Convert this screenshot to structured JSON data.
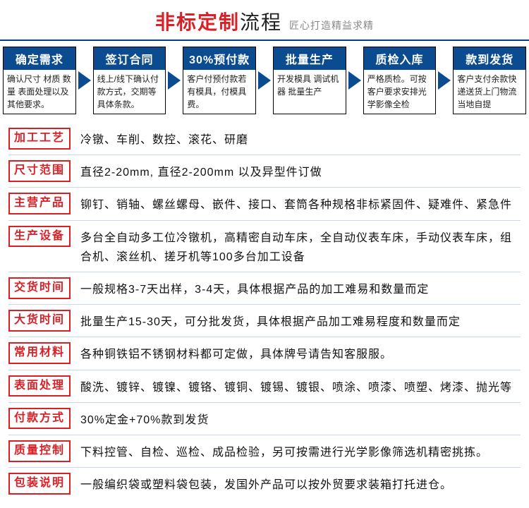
{
  "header": {
    "title_red": "非标定制",
    "title_black": "流程",
    "subtitle": "匠心打造精益求精"
  },
  "flow": [
    {
      "title": "确定需求",
      "body": "确认尺寸 材质 数量 表面处理以及其他要求。"
    },
    {
      "title": "签订合同",
      "body": "线上/线下确认付款方式，交期等具体条款。"
    },
    {
      "title": "30%预付款",
      "body": "客户付预付款若有模具，付模具费。"
    },
    {
      "title": "批量生产",
      "body": "开发模具 调试机器 批量生产"
    },
    {
      "title": "质检入库",
      "body": "严格质检。可按客户要求安排光学影像全检"
    },
    {
      "title": "款到发货",
      "body": "客户支付余款快递送货上门物流当地自提"
    }
  ],
  "rows": [
    {
      "label": "加工工艺",
      "value": "冷镦、车削、数控、滚花、研磨"
    },
    {
      "label": "尺寸范围",
      "value": "直径2-20mm,  直径2-200mm 以及异型件订做"
    },
    {
      "label": "主营产品",
      "value": "铆钉、销轴、螺丝螺母、嵌件、接口、套筒各种规格非标紧固件、疑难件、紧急件"
    },
    {
      "label": "生产设备",
      "value": "多台全自动多工位冷镦机，高精密自动车床，全自动仪表车床，手动仪表车床，组合机、滚丝机、搓牙机等100多台加工设备"
    },
    {
      "label": "交货时间",
      "value": "一般规格3-7天出样，3-4天，具体根据产品的加工难易和数量而定"
    },
    {
      "label": "大货时间",
      "value": "批量生产15-30天，可分批发货，具体根据产品加工难易程度和数量而定"
    },
    {
      "label": "常用材料",
      "value": "各种铜铁铝不锈钢材料都可定做，具体牌号请告知客服服。"
    },
    {
      "label": "表面处理",
      "value": "酸洗、镀锌、镀镍、镀铬、镀铜、镀锡、镀银、喷涂、喷漆、喷塑、烤漆、抛光等"
    },
    {
      "label": "付款方式",
      "value": "30%定金+70%款到发货"
    },
    {
      "label": "质量控制",
      "value": "下料控管、自检、巡检、成品检验，另可按需进行光学影像筛选机精密挑拣。"
    },
    {
      "label": "包装说明",
      "value": "一般编织袋或塑料袋包装，发国外产品可以按外贸要求装箱打托进仓。"
    }
  ]
}
